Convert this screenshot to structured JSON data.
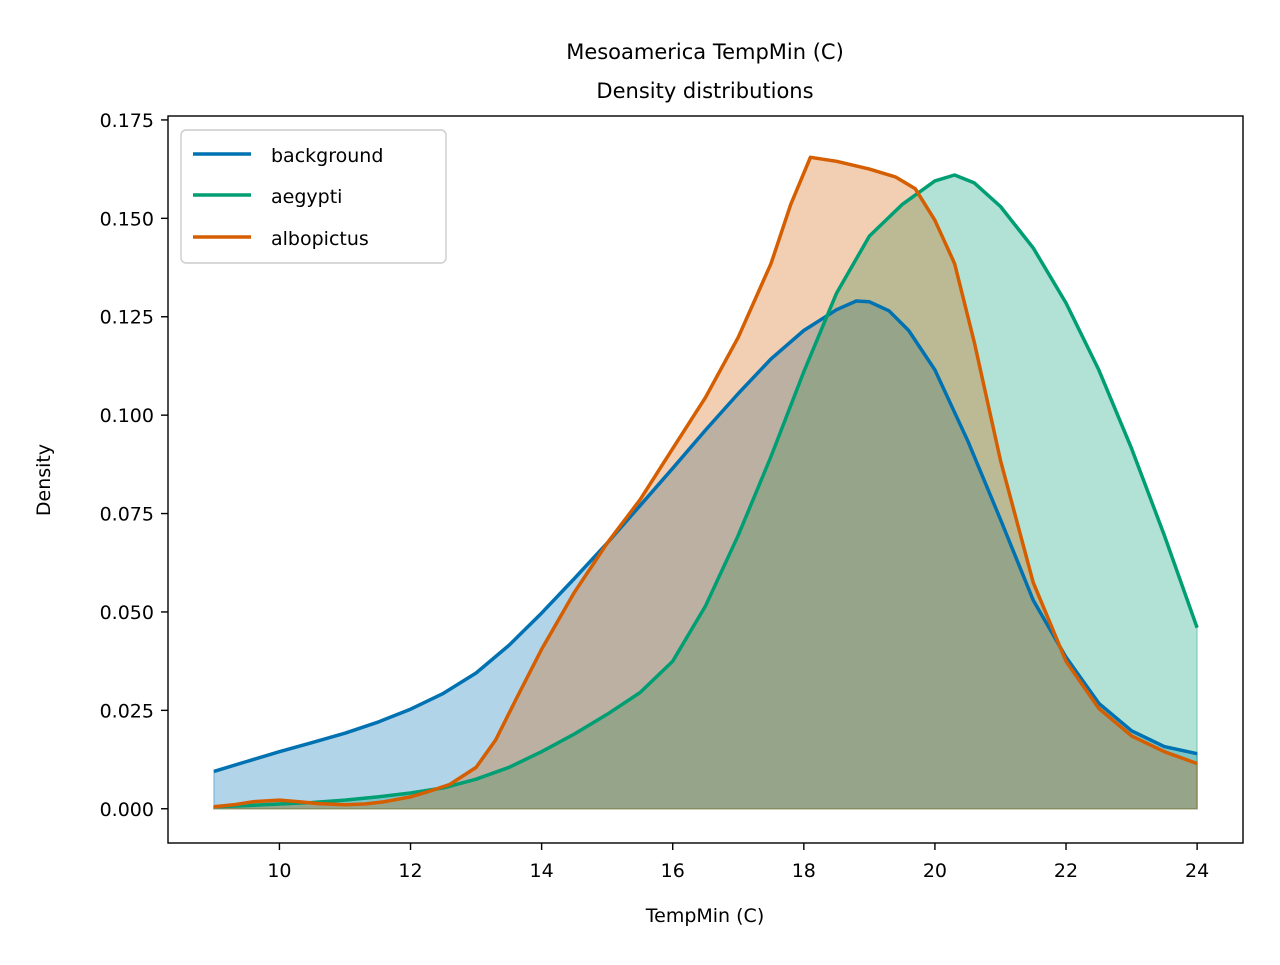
{
  "chart_data": {
    "type": "area",
    "title": "Mesoamerica TempMin (C)",
    "subtitle": "Density distributions",
    "xlabel": "TempMin (C)",
    "ylabel": "Density",
    "xlim": [
      8.3,
      24.7
    ],
    "ylim": [
      -0.0087,
      0.176
    ],
    "xticks": [
      10,
      12,
      14,
      16,
      18,
      20,
      22,
      24
    ],
    "yticks": [
      0.0,
      0.025,
      0.05,
      0.075,
      0.1,
      0.125,
      0.15,
      0.175
    ],
    "ytick_labels": [
      "0.000",
      "0.025",
      "0.050",
      "0.075",
      "0.100",
      "0.125",
      "0.150",
      "0.175"
    ],
    "legend_position": "top-left",
    "grid": false,
    "series": [
      {
        "name": "background",
        "color": "#0072b2",
        "x": [
          9.0,
          9.5,
          10.0,
          10.5,
          11.0,
          11.5,
          12.0,
          12.5,
          13.0,
          13.5,
          14.0,
          14.5,
          15.0,
          15.5,
          16.0,
          16.5,
          17.0,
          17.5,
          18.0,
          18.5,
          18.8,
          19.0,
          19.3,
          19.6,
          20.0,
          20.5,
          21.0,
          21.5,
          22.0,
          22.5,
          23.0,
          23.5,
          24.0
        ],
        "y": [
          0.0095,
          0.012,
          0.0145,
          0.0168,
          0.0192,
          0.022,
          0.0253,
          0.0293,
          0.0345,
          0.0415,
          0.0497,
          0.0585,
          0.0675,
          0.077,
          0.0865,
          0.0962,
          0.1055,
          0.1143,
          0.1215,
          0.1268,
          0.129,
          0.1288,
          0.1265,
          0.1215,
          0.1115,
          0.0935,
          0.0735,
          0.053,
          0.0385,
          0.0268,
          0.0198,
          0.0158,
          0.014
        ]
      },
      {
        "name": "aegypti",
        "color": "#009e73",
        "x": [
          9.0,
          9.5,
          10.0,
          10.5,
          11.0,
          11.5,
          12.0,
          12.5,
          13.0,
          13.5,
          14.0,
          14.5,
          15.0,
          15.5,
          16.0,
          16.5,
          17.0,
          17.5,
          18.0,
          18.5,
          19.0,
          19.5,
          20.0,
          20.3,
          20.6,
          21.0,
          21.5,
          22.0,
          22.5,
          23.0,
          23.5,
          24.0
        ],
        "y": [
          0.0005,
          0.0008,
          0.0012,
          0.0016,
          0.0022,
          0.003,
          0.004,
          0.0053,
          0.0075,
          0.0105,
          0.0145,
          0.019,
          0.024,
          0.0295,
          0.0375,
          0.0515,
          0.0695,
          0.0895,
          0.111,
          0.131,
          0.1455,
          0.1535,
          0.1595,
          0.161,
          0.159,
          0.153,
          0.1425,
          0.1285,
          0.1115,
          0.0915,
          0.0695,
          0.046
        ]
      },
      {
        "name": "albopictus",
        "color": "#d55e00",
        "x": [
          9.0,
          9.3,
          9.6,
          10.0,
          10.3,
          10.6,
          11.0,
          11.3,
          11.6,
          12.0,
          12.3,
          12.6,
          13.0,
          13.3,
          13.6,
          14.0,
          14.5,
          15.0,
          15.5,
          16.0,
          16.5,
          17.0,
          17.5,
          17.8,
          18.1,
          18.5,
          19.0,
          19.4,
          19.7,
          20.0,
          20.3,
          20.6,
          21.0,
          21.5,
          22.0,
          22.5,
          23.0,
          23.5,
          24.0
        ],
        "y": [
          0.0005,
          0.001,
          0.0018,
          0.0022,
          0.0018,
          0.0013,
          0.001,
          0.0012,
          0.0018,
          0.003,
          0.0045,
          0.0062,
          0.0105,
          0.0175,
          0.0275,
          0.0405,
          0.055,
          0.0675,
          0.0785,
          0.0915,
          0.1045,
          0.1198,
          0.1385,
          0.1535,
          0.1655,
          0.1645,
          0.1625,
          0.1605,
          0.1575,
          0.1495,
          0.1385,
          0.1185,
          0.0885,
          0.0575,
          0.0375,
          0.0255,
          0.0185,
          0.0145,
          0.0115
        ]
      }
    ]
  }
}
